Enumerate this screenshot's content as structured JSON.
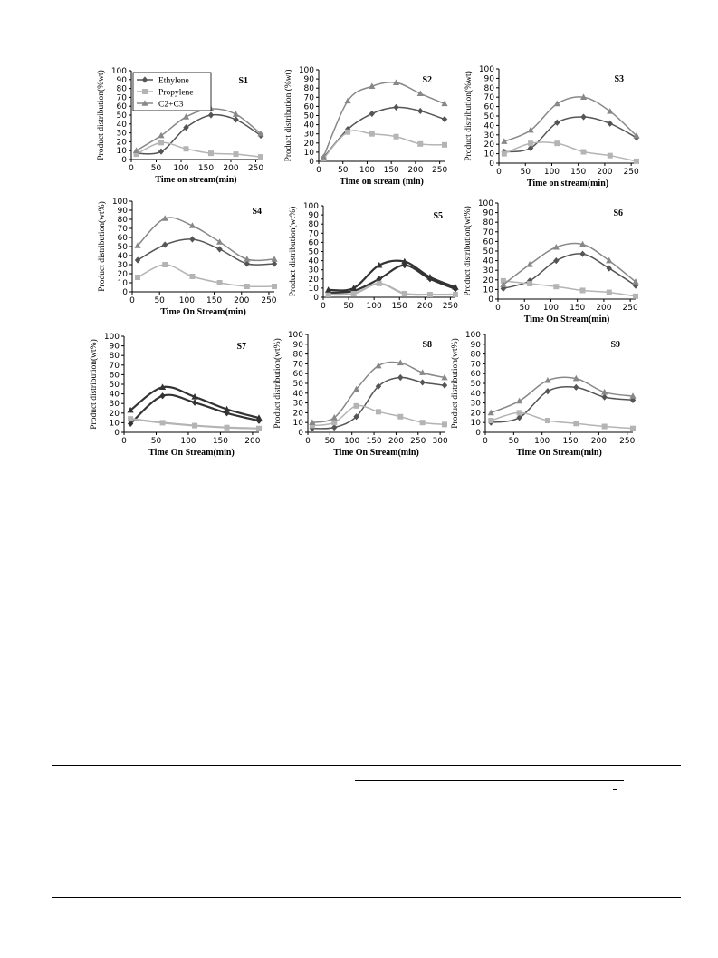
{
  "colors": {
    "ethylene": "#555555",
    "propylene": "#b4b4b4",
    "c2c3": "#888888",
    "dark": "#333333"
  },
  "legend": {
    "panel": "S1",
    "placement": "top-left",
    "entries": [
      {
        "label": "Ethylene",
        "series": "ethylene",
        "marker": "diamond"
      },
      {
        "label": "Propylene",
        "series": "propylene",
        "marker": "square"
      },
      {
        "label": "C2+C3",
        "series": "c2c3",
        "marker": "triangle"
      }
    ]
  },
  "chart_data": [
    {
      "type": "line",
      "panel_label": "S1",
      "xlabel": "Time on stream(min)",
      "ylabel": "Product distribution(%wt)",
      "xlim": [
        0,
        260
      ],
      "ylim": [
        0,
        100
      ],
      "xticks": [
        0,
        50,
        100,
        150,
        200,
        250
      ],
      "yticks": [
        0,
        10,
        20,
        30,
        40,
        50,
        60,
        70,
        80,
        90,
        100
      ],
      "series": [
        {
          "key": "ethylene",
          "marker": "diamond",
          "x": [
            10,
            60,
            110,
            160,
            210,
            260
          ],
          "values": [
            7,
            9,
            36,
            50,
            45,
            27
          ]
        },
        {
          "key": "propylene",
          "marker": "square",
          "x": [
            10,
            60,
            110,
            160,
            210,
            260
          ],
          "values": [
            6,
            19,
            12,
            7,
            6,
            3
          ]
        },
        {
          "key": "c2c3",
          "marker": "triangle",
          "x": [
            10,
            60,
            110,
            160,
            210,
            260
          ],
          "values": [
            10,
            27,
            48,
            57,
            51,
            29
          ]
        }
      ]
    },
    {
      "type": "line",
      "panel_label": "S2",
      "xlabel": "Time on stream (min)",
      "ylabel": "Product distribution (%wt)",
      "xlim": [
        0,
        260
      ],
      "ylim": [
        0,
        100
      ],
      "xticks": [
        0,
        50,
        100,
        150,
        200,
        250
      ],
      "yticks": [
        0,
        10,
        20,
        30,
        40,
        50,
        60,
        70,
        80,
        90,
        100
      ],
      "series": [
        {
          "key": "ethylene",
          "marker": "diamond",
          "x": [
            10,
            60,
            110,
            160,
            210,
            260
          ],
          "values": [
            4,
            35,
            52,
            59,
            55,
            46
          ]
        },
        {
          "key": "propylene",
          "marker": "square",
          "x": [
            10,
            60,
            110,
            160,
            210,
            260
          ],
          "values": [
            3,
            32,
            30,
            27,
            19,
            18
          ]
        },
        {
          "key": "c2c3",
          "marker": "triangle",
          "x": [
            10,
            60,
            110,
            160,
            210,
            260
          ],
          "values": [
            5,
            66,
            82,
            86,
            74,
            63
          ]
        }
      ]
    },
    {
      "type": "line",
      "panel_label": "S3",
      "xlabel": "Time on stream(min)",
      "ylabel": "Product distribution(%wt)",
      "xlim": [
        0,
        260
      ],
      "ylim": [
        0,
        100
      ],
      "xticks": [
        0,
        50,
        100,
        150,
        200,
        250
      ],
      "yticks": [
        0,
        10,
        20,
        30,
        40,
        50,
        60,
        70,
        80,
        90,
        100
      ],
      "series": [
        {
          "key": "ethylene",
          "marker": "diamond",
          "x": [
            10,
            60,
            110,
            160,
            210,
            260
          ],
          "values": [
            12,
            16,
            43,
            49,
            42,
            27
          ]
        },
        {
          "key": "propylene",
          "marker": "square",
          "x": [
            10,
            60,
            110,
            160,
            210,
            260
          ],
          "values": [
            10,
            21,
            21,
            12,
            8,
            2
          ]
        },
        {
          "key": "c2c3",
          "marker": "triangle",
          "x": [
            10,
            60,
            110,
            160,
            210,
            260
          ],
          "values": [
            23,
            35,
            63,
            70,
            55,
            29
          ]
        }
      ]
    },
    {
      "type": "line",
      "panel_label": "S4",
      "xlabel": "Time On Stream(min)",
      "ylabel": "Product distribution(wt%)",
      "xlim": [
        0,
        260
      ],
      "ylim": [
        0,
        100
      ],
      "xticks": [
        0,
        50,
        100,
        150,
        200,
        250
      ],
      "yticks": [
        0,
        10,
        20,
        30,
        40,
        50,
        60,
        70,
        80,
        90,
        100
      ],
      "series": [
        {
          "key": "ethylene",
          "marker": "diamond",
          "x": [
            10,
            60,
            110,
            160,
            210,
            260
          ],
          "values": [
            35,
            52,
            58,
            47,
            31,
            31
          ]
        },
        {
          "key": "propylene",
          "marker": "square",
          "x": [
            10,
            60,
            110,
            160,
            210,
            260
          ],
          "values": [
            16,
            30,
            17,
            10,
            6,
            6
          ]
        },
        {
          "key": "c2c3",
          "marker": "triangle",
          "x": [
            10,
            60,
            110,
            160,
            210,
            260
          ],
          "values": [
            51,
            81,
            73,
            55,
            36,
            36
          ]
        }
      ]
    },
    {
      "type": "line",
      "panel_label": "S5",
      "xlabel": "",
      "ylabel": "Product distribution(wt%)",
      "xlim": [
        0,
        260
      ],
      "ylim": [
        0,
        100
      ],
      "xticks": [
        0,
        50,
        100,
        150,
        200,
        250
      ],
      "yticks": [
        0,
        10,
        20,
        30,
        40,
        50,
        60,
        70,
        80,
        90,
        100
      ],
      "series": [
        {
          "key": "ethylene",
          "marker": "diamond",
          "x": [
            10,
            60,
            110,
            160,
            210,
            260
          ],
          "values": [
            5,
            7,
            20,
            35,
            20,
            9
          ]
        },
        {
          "key": "propylene",
          "marker": "square",
          "x": [
            10,
            60,
            110,
            160,
            210,
            260
          ],
          "values": [
            3,
            4,
            15,
            4,
            3,
            3
          ]
        },
        {
          "key": "c2c3",
          "marker": "triangle",
          "x": [
            10,
            60,
            110,
            160,
            210,
            260
          ],
          "values": [
            8,
            10,
            35,
            39,
            22,
            11
          ]
        }
      ]
    },
    {
      "type": "line",
      "panel_label": "S6",
      "xlabel": "Time On Stream(min)",
      "ylabel": "Product distribution(wt%)",
      "xlim": [
        0,
        260
      ],
      "ylim": [
        0,
        100
      ],
      "xticks": [
        0,
        50,
        100,
        150,
        200,
        250
      ],
      "yticks": [
        0,
        10,
        20,
        30,
        40,
        50,
        60,
        70,
        80,
        90,
        100
      ],
      "series": [
        {
          "key": "ethylene",
          "marker": "diamond",
          "x": [
            10,
            60,
            110,
            160,
            210,
            260
          ],
          "values": [
            11,
            19,
            40,
            47,
            32,
            14
          ]
        },
        {
          "key": "propylene",
          "marker": "square",
          "x": [
            10,
            60,
            110,
            160,
            210,
            260
          ],
          "values": [
            19,
            16,
            13,
            9,
            7,
            3
          ]
        },
        {
          "key": "c2c3",
          "marker": "triangle",
          "x": [
            10,
            60,
            110,
            160,
            210,
            260
          ],
          "values": [
            15,
            36,
            54,
            57,
            40,
            18
          ]
        }
      ]
    },
    {
      "type": "line",
      "panel_label": "S7",
      "xlabel": "Time On Stream(min)",
      "ylabel": "Product distribution(wt%)",
      "xlim": [
        0,
        210
      ],
      "ylim": [
        0,
        100
      ],
      "xticks": [
        0,
        50,
        100,
        150,
        200
      ],
      "yticks": [
        0,
        10,
        20,
        30,
        40,
        50,
        60,
        70,
        80,
        90,
        100
      ],
      "series": [
        {
          "key": "ethylene",
          "marker": "diamond",
          "x": [
            10,
            60,
            110,
            160,
            210
          ],
          "values": [
            9,
            38,
            31,
            20,
            12
          ]
        },
        {
          "key": "propylene",
          "marker": "square",
          "x": [
            10,
            60,
            110,
            160,
            210
          ],
          "values": [
            14,
            10,
            7,
            5,
            4
          ]
        },
        {
          "key": "c2c3",
          "marker": "triangle",
          "x": [
            10,
            60,
            110,
            160,
            210
          ],
          "values": [
            23,
            47,
            37,
            24,
            15
          ]
        }
      ]
    },
    {
      "type": "line",
      "panel_label": "S8",
      "xlabel": "Time  On Stream(min)",
      "ylabel": "Product distribution(wt%)",
      "xlim": [
        0,
        310
      ],
      "ylim": [
        0,
        100
      ],
      "xticks": [
        0,
        50,
        100,
        150,
        200,
        250,
        300
      ],
      "yticks": [
        0,
        10,
        20,
        30,
        40,
        50,
        60,
        70,
        80,
        90,
        100
      ],
      "series": [
        {
          "key": "ethylene",
          "marker": "diamond",
          "x": [
            10,
            60,
            110,
            160,
            210,
            260,
            310
          ],
          "values": [
            4,
            5,
            16,
            47,
            56,
            51,
            48
          ]
        },
        {
          "key": "propylene",
          "marker": "square",
          "x": [
            10,
            60,
            110,
            160,
            210,
            260,
            310
          ],
          "values": [
            7,
            10,
            27,
            21,
            16,
            10,
            8
          ]
        },
        {
          "key": "c2c3",
          "marker": "triangle",
          "x": [
            10,
            60,
            110,
            160,
            210,
            260,
            310
          ],
          "values": [
            10,
            15,
            44,
            68,
            71,
            61,
            56
          ]
        }
      ]
    },
    {
      "type": "line",
      "panel_label": "S9",
      "xlabel": "Time On Stream(min)",
      "ylabel": "Product distribution(wt%)",
      "xlim": [
        0,
        260
      ],
      "ylim": [
        0,
        100
      ],
      "xticks": [
        0,
        50,
        100,
        150,
        200,
        250
      ],
      "yticks": [
        0,
        10,
        20,
        30,
        40,
        50,
        60,
        70,
        80,
        90,
        100
      ],
      "series": [
        {
          "key": "ethylene",
          "marker": "diamond",
          "x": [
            10,
            60,
            110,
            160,
            210,
            260
          ],
          "values": [
            10,
            15,
            42,
            46,
            36,
            33
          ]
        },
        {
          "key": "propylene",
          "marker": "square",
          "x": [
            10,
            60,
            110,
            160,
            210,
            260
          ],
          "values": [
            12,
            20,
            12,
            9,
            6,
            4
          ]
        },
        {
          "key": "c2c3",
          "marker": "triangle",
          "x": [
            10,
            60,
            110,
            160,
            210,
            260
          ],
          "values": [
            20,
            32,
            53,
            55,
            41,
            37
          ]
        }
      ]
    }
  ]
}
